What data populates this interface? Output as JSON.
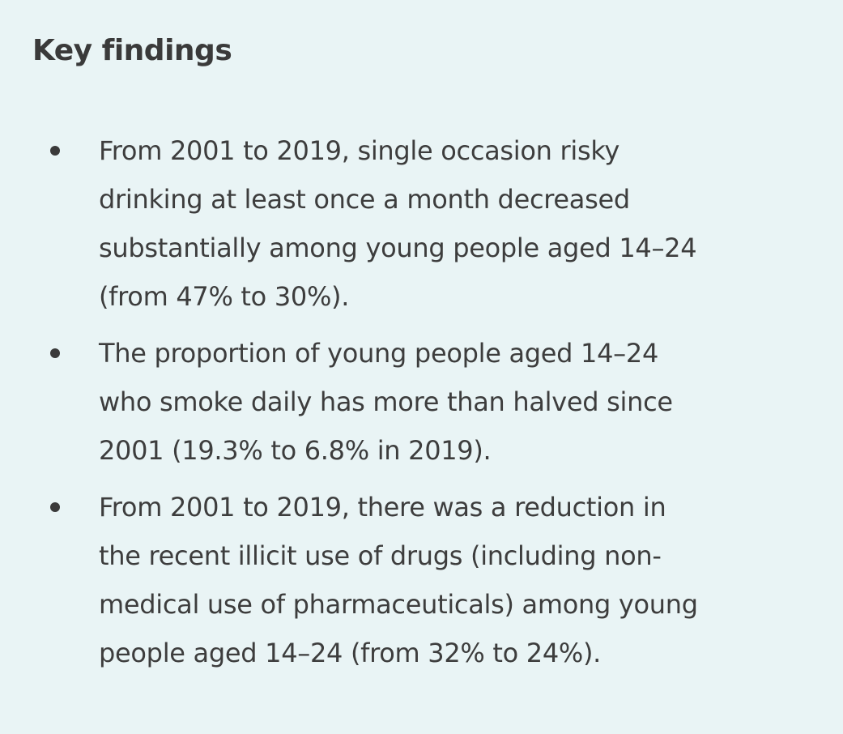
{
  "header": {
    "title": "Key findings"
  },
  "list": {
    "items": [
      {
        "lines": [
          "From 2001 to 2019, single occasion risky",
          "drinking at least once a month decreased",
          "substantially among young people aged 14–24",
          "(from 47% to 30%)."
        ]
      },
      {
        "lines": [
          "The proportion of young people aged 14–24",
          "who smoke daily has more than halved since",
          "2001 (19.3% to 6.8% in 2019)."
        ]
      },
      {
        "lines": [
          "From 2001 to 2019, there was a reduction in",
          "the recent illicit use of drugs (including non-",
          "medical use of pharmaceuticals) among young",
          "people aged 14–24 (from 32% to 24%)."
        ]
      }
    ]
  }
}
